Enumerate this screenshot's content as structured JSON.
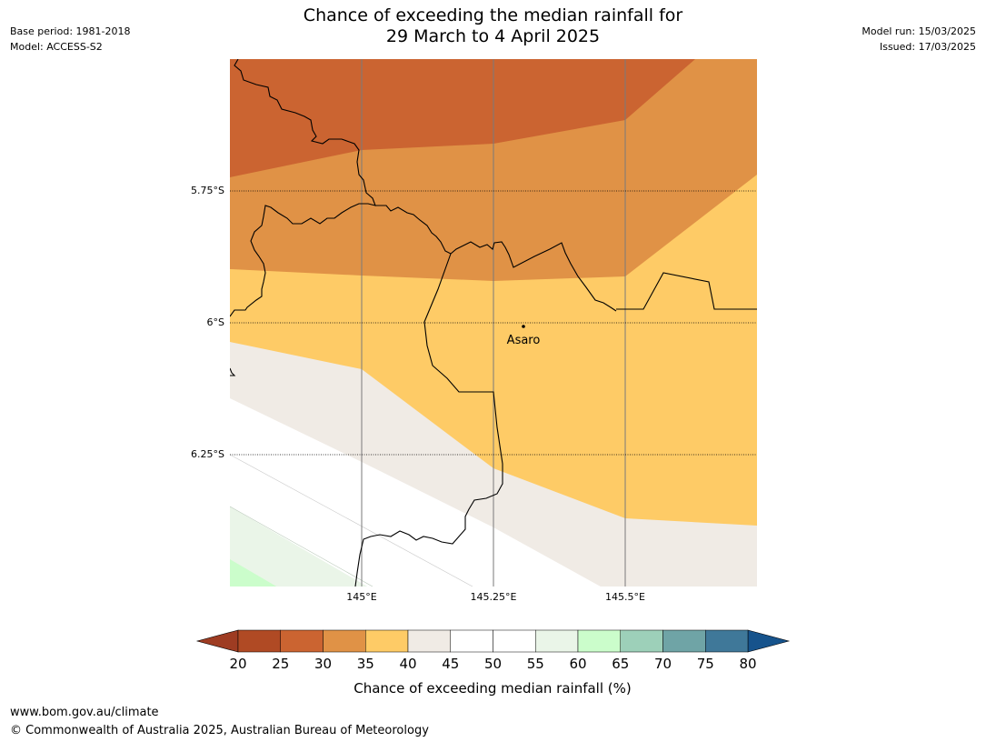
{
  "header": {
    "base_period": "Base period: 1981-2018",
    "model": "Model: ACCESS-S2",
    "model_run": "Model run: 15/03/2025",
    "issued": "Issued: 17/03/2025",
    "title_line1": "Chance of exceeding the median rainfall for",
    "title_line2": "29 March to 4 April 2025"
  },
  "map": {
    "place_label": "Asaro",
    "lat_ticks": [
      "5.75°S",
      "6°S",
      "6.25°S"
    ],
    "lon_ticks": [
      "145°E",
      "145.25°E",
      "145.5°E"
    ],
    "zone_colors": {
      "25-30": "#cb6431",
      "30-35": "#e09246",
      "35-40": "#fecb66",
      "40-45": "#f0ebe5",
      "45-55": "#ffffff",
      "55-60": "#eaf5e8",
      "60-65": "#cbfdcb"
    }
  },
  "colorbar": {
    "label": "Chance of exceeding median rainfall (%)",
    "ticks": [
      "20",
      "25",
      "30",
      "35",
      "40",
      "45",
      "50",
      "55",
      "60",
      "65",
      "70",
      "75",
      "80"
    ],
    "under_color": "#9e3c22",
    "over_color": "#16538c",
    "colors": [
      "#b04a24",
      "#cb6431",
      "#e09246",
      "#fecb66",
      "#f0ebe5",
      "#ffffff",
      "#ffffff",
      "#eaf5e8",
      "#cbfdcb",
      "#9dd0b9",
      "#6fa4a6",
      "#3f7899"
    ]
  },
  "footer": {
    "url": "www.bom.gov.au/climate",
    "copyright": "© Commonwealth of Australia 2025, Australian Bureau of Meteorology"
  }
}
